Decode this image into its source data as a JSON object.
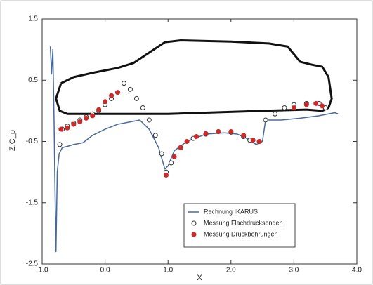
{
  "chart_data": {
    "type": "line",
    "xlabel": "X",
    "ylabel": "Z,C_p",
    "xlim": [
      -1.0,
      4.0
    ],
    "ylim": [
      -2.5,
      1.5
    ],
    "xticks": [
      {
        "value": -1.0,
        "label": "-1.0"
      },
      {
        "value": 0.0,
        "label": "0.0"
      },
      {
        "value": 1.0,
        "label": "1.0"
      },
      {
        "value": 2.0,
        "label": "2.0"
      },
      {
        "value": 3.0,
        "label": "3.0"
      },
      {
        "value": 4.0,
        "label": "4.0"
      }
    ],
    "yticks": [
      -2.5,
      -1.5,
      -0.5,
      0.5,
      1.5
    ],
    "legend": "lower right",
    "series": [
      {
        "color": "#111111",
        "marker": null,
        "width": 3,
        "x": [
          -0.7,
          -0.5,
          -0.2,
          0.2,
          0.45,
          0.7,
          0.95,
          1.2,
          2.0,
          2.6,
          2.9,
          3.1,
          3.3,
          3.45,
          3.55,
          3.6,
          3.55,
          3.45,
          3.2,
          2.5,
          1.0,
          0.0,
          -0.6,
          -0.72,
          -0.78,
          -0.7
        ],
        "values": [
          0.45,
          0.55,
          0.62,
          0.7,
          0.78,
          0.95,
          1.12,
          1.15,
          1.13,
          1.1,
          1.05,
          0.8,
          0.75,
          0.72,
          0.55,
          0.2,
          0.05,
          0.0,
          0.02,
          0.0,
          -0.05,
          -0.05,
          -0.05,
          0.0,
          0.2,
          0.45
        ]
      },
      {
        "name": "Rechnung IKARUS",
        "color": "#4a6a9a",
        "marker": null,
        "width": 1.5,
        "x": [
          -0.87,
          -0.85,
          -0.83,
          -0.81,
          -0.8,
          -0.78,
          -0.76,
          -0.73,
          -0.68,
          -0.6,
          -0.5,
          -0.35,
          -0.2,
          0.0,
          0.2,
          0.4,
          0.55,
          0.7,
          0.85,
          0.95,
          1.0,
          1.1,
          1.3,
          1.6,
          1.9,
          2.1,
          2.25,
          2.4,
          2.5,
          2.55,
          2.8,
          3.1,
          3.4,
          3.55,
          3.65,
          3.7
        ],
        "values": [
          1.05,
          0.6,
          1.0,
          -0.2,
          -1.0,
          -2.3,
          -1.0,
          -0.7,
          -0.6,
          -0.58,
          -0.55,
          -0.52,
          -0.4,
          -0.3,
          -0.22,
          -0.18,
          -0.15,
          -0.3,
          -0.6,
          -0.95,
          -0.9,
          -0.65,
          -0.5,
          -0.38,
          -0.36,
          -0.38,
          -0.45,
          -0.55,
          -0.5,
          -0.15,
          -0.15,
          -0.12,
          -0.08,
          -0.05,
          -0.03,
          -0.05
        ]
      },
      {
        "name": "Messung Flachdrucksonden",
        "color": "#333333",
        "marker": "open",
        "x": [
          -0.72,
          -0.68,
          -0.6,
          -0.5,
          -0.4,
          -0.3,
          -0.2,
          -0.1,
          0.0,
          0.1,
          0.2,
          0.3,
          0.4,
          0.5,
          0.6,
          0.7,
          0.8,
          0.9,
          0.97,
          1.05,
          1.2,
          1.4,
          1.6,
          1.8,
          2.0,
          2.2,
          2.3,
          2.45,
          2.55,
          2.7,
          2.85,
          3.0,
          3.2,
          3.4,
          3.5
        ],
        "values": [
          -0.55,
          -0.3,
          -0.25,
          -0.2,
          -0.15,
          -0.1,
          -0.05,
          0.0,
          0.1,
          0.2,
          0.3,
          0.45,
          0.35,
          0.2,
          0.05,
          -0.15,
          -0.4,
          -0.7,
          -1.0,
          -0.85,
          -0.6,
          -0.45,
          -0.38,
          -0.34,
          -0.35,
          -0.42,
          -0.48,
          -0.5,
          -0.15,
          -0.05,
          0.05,
          0.1,
          0.12,
          0.12,
          0.05
        ]
      },
      {
        "name": "Messung Druckbohrungen",
        "color": "#cc2a2a",
        "marker": "filled",
        "x": [
          -0.7,
          -0.6,
          -0.5,
          -0.4,
          -0.3,
          -0.2,
          -0.1,
          0.0,
          0.1,
          0.2,
          0.97,
          1.1,
          1.2,
          1.3,
          1.45,
          1.6,
          1.8,
          2.0,
          2.2,
          2.35,
          2.45,
          3.0,
          3.2,
          3.35,
          3.45
        ],
        "values": [
          -0.3,
          -0.28,
          -0.22,
          -0.18,
          -0.12,
          -0.08,
          0.02,
          0.15,
          0.25,
          0.3,
          -1.05,
          -0.75,
          -0.6,
          -0.5,
          -0.42,
          -0.37,
          -0.34,
          -0.34,
          -0.4,
          -0.48,
          -0.5,
          0.05,
          0.1,
          0.12,
          0.08
        ]
      }
    ]
  }
}
